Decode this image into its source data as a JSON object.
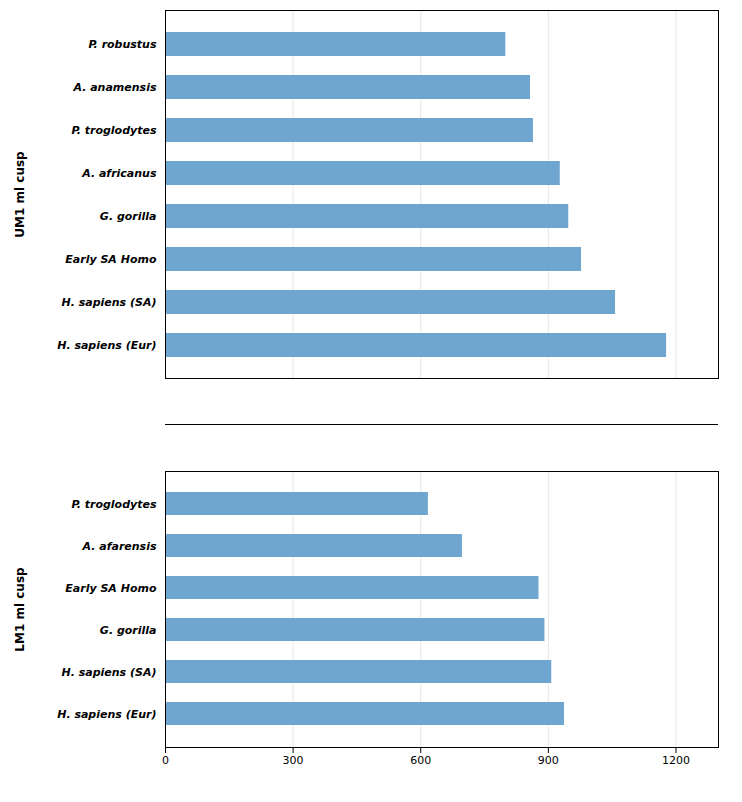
{
  "chart_data": [
    {
      "type": "bar",
      "orientation": "horizontal",
      "ylabel": "UM1 ml cusp",
      "categories": [
        "P. robustus",
        "A. anamensis",
        "P. troglodytes",
        "A. africanus",
        "G. gorilla",
        "Early SA Homo",
        "H. sapiens (SA)",
        "H. sapiens (Eur)"
      ],
      "values": [
        800,
        858,
        865,
        928,
        948,
        978,
        1058,
        1178
      ],
      "color": "#6EA6D0",
      "xlim": [
        0,
        1300
      ],
      "xticks": [
        0,
        300,
        600,
        900,
        1200
      ],
      "grid": true,
      "tick_labels": "y"
    },
    {
      "type": "bar",
      "orientation": "horizontal",
      "ylabel": "LM1 ml cusp",
      "categories": [
        "P. troglodytes",
        "A. afarensis",
        "Early SA Homo",
        "G. gorilla",
        "H. sapiens (SA)",
        "H. sapiens (Eur)"
      ],
      "values": [
        618,
        698,
        878,
        892,
        908,
        938
      ],
      "color": "#6EA6D0",
      "xlim": [
        0,
        1300
      ],
      "xticks": [
        0,
        300,
        600,
        900,
        1200
      ],
      "grid": true
    }
  ]
}
